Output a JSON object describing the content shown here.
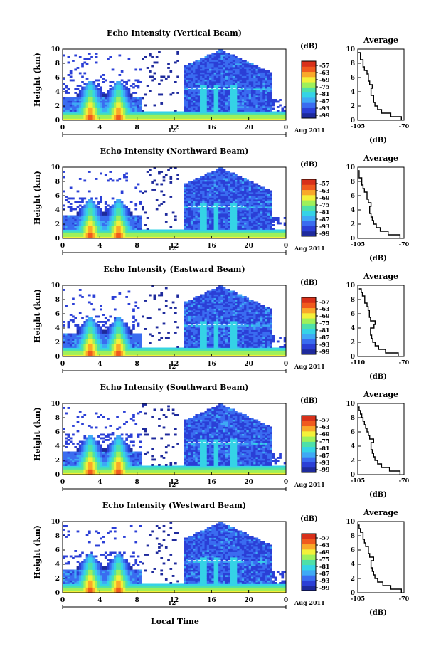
{
  "chart_data": [
    {
      "type": "heatmap",
      "title": "Echo Intensity (Vertical Beam)",
      "ylabel": "Height (km)",
      "xlabel": "",
      "x_ticks": [
        "0",
        "4",
        "8",
        "12",
        "16",
        "20",
        "0"
      ],
      "y_ticks": [
        "0",
        "2",
        "4",
        "6",
        "8",
        "10"
      ],
      "ylim": [
        0,
        10
      ],
      "xlim": [
        0,
        24
      ],
      "colorbar": {
        "unit": "(dB)",
        "ticks": [
          "-57",
          "-63",
          "-69",
          "-75",
          "-81",
          "-87",
          "-93",
          "-99"
        ]
      },
      "date_label": "Aug 2011",
      "mid_label": "12",
      "average": {
        "title": "Average",
        "xlabel": "(dB)",
        "x_ticks": [
          "-105",
          "-70"
        ],
        "xlim": [
          -105,
          -70
        ],
        "y_ticks": [
          "0",
          "2",
          "4",
          "6",
          "8",
          "10"
        ],
        "height": [
          0,
          0.5,
          1,
          1.5,
          2,
          2.5,
          3,
          3.5,
          4,
          4.5,
          5,
          5.5,
          6,
          6.5,
          7,
          7.5,
          8,
          8.5,
          9,
          9.5
        ],
        "db": [
          -72,
          -80,
          -87,
          -90,
          -92,
          -93,
          -93,
          -95,
          -95,
          -94,
          -96,
          -97,
          -97,
          -98,
          -100,
          -101,
          -101,
          -103,
          -103,
          -105
        ]
      }
    },
    {
      "type": "heatmap",
      "title": "Echo Intensity (Northward Beam)",
      "ylabel": "Height (km)",
      "xlabel": "",
      "x_ticks": [
        "0",
        "4",
        "8",
        "12",
        "16",
        "20",
        "0"
      ],
      "y_ticks": [
        "0",
        "2",
        "4",
        "6",
        "8",
        "10"
      ],
      "ylim": [
        0,
        10
      ],
      "xlim": [
        0,
        24
      ],
      "colorbar": {
        "unit": "(dB)",
        "ticks": [
          "-57",
          "-63",
          "-69",
          "-75",
          "-81",
          "-87",
          "-93",
          "-99"
        ]
      },
      "date_label": "Aug 2011",
      "mid_label": "12",
      "average": {
        "title": "Average",
        "xlabel": "(dB)",
        "x_ticks": [
          "-105",
          "-70"
        ],
        "xlim": [
          -105,
          -70
        ],
        "y_ticks": [
          "0",
          "2",
          "4",
          "6",
          "8",
          "10"
        ],
        "height": [
          0,
          0.5,
          1,
          1.5,
          2,
          2.5,
          3,
          3.5,
          4,
          4.5,
          5,
          5.5,
          6,
          6.5,
          7,
          7.5,
          8,
          8.5,
          9,
          9.5
        ],
        "db": [
          -73,
          -82,
          -88,
          -91,
          -93,
          -94,
          -95,
          -96,
          -96,
          -95,
          -97,
          -98,
          -98,
          -100,
          -101,
          -102,
          -102,
          -104,
          -104,
          -105
        ]
      }
    },
    {
      "type": "heatmap",
      "title": "Echo Intensity (Eastward Beam)",
      "ylabel": "Height (km)",
      "xlabel": "",
      "x_ticks": [
        "0",
        "4",
        "8",
        "12",
        "16",
        "20",
        "0"
      ],
      "y_ticks": [
        "0",
        "2",
        "4",
        "6",
        "8",
        "10"
      ],
      "ylim": [
        0,
        10
      ],
      "xlim": [
        0,
        24
      ],
      "colorbar": {
        "unit": "(dB)",
        "ticks": [
          "-57",
          "-63",
          "-69",
          "-75",
          "-81",
          "-87",
          "-93",
          "-99"
        ]
      },
      "date_label": "Aug 2011",
      "mid_label": "12",
      "average": {
        "title": "Average",
        "xlabel": "(dB)",
        "x_ticks": [
          "-110",
          "-70"
        ],
        "xlim": [
          -110,
          -70
        ],
        "y_ticks": [
          "0",
          "2",
          "4",
          "6",
          "8",
          "10"
        ],
        "height": [
          0,
          0.5,
          1,
          1.5,
          2,
          2.5,
          3,
          3.5,
          4,
          4.5,
          5,
          5.5,
          6,
          6.5,
          7,
          7.5,
          8,
          8.5,
          9,
          9.5
        ],
        "db": [
          -75,
          -86,
          -92,
          -95,
          -97,
          -98,
          -99,
          -99,
          -96,
          -95,
          -99,
          -100,
          -100,
          -101,
          -102,
          -104,
          -104,
          -106,
          -107,
          -109
        ]
      }
    },
    {
      "type": "heatmap",
      "title": "Echo Intensity (Southward Beam)",
      "ylabel": "Height (km)",
      "xlabel": "",
      "x_ticks": [
        "0",
        "4",
        "8",
        "12",
        "16",
        "20",
        "0"
      ],
      "y_ticks": [
        "0",
        "2",
        "4",
        "6",
        "8",
        "10"
      ],
      "ylim": [
        0,
        10
      ],
      "xlim": [
        0,
        24
      ],
      "colorbar": {
        "unit": "(dB)",
        "ticks": [
          "-57",
          "-63",
          "-69",
          "-75",
          "-81",
          "-87",
          "-93",
          "-99"
        ]
      },
      "date_label": "Aug 2011",
      "mid_label": "12",
      "average": {
        "title": "Average",
        "xlabel": "(dB)",
        "x_ticks": [
          "-105",
          "-70"
        ],
        "xlim": [
          -105,
          -70
        ],
        "y_ticks": [
          "0",
          "2",
          "4",
          "6",
          "8",
          "10"
        ],
        "height": [
          0,
          0.5,
          1,
          1.5,
          2,
          2.5,
          3,
          3.5,
          4,
          4.5,
          5,
          5.5,
          6,
          6.5,
          7,
          7.5,
          8,
          8.5,
          9,
          9.5
        ],
        "db": [
          -73,
          -81,
          -87,
          -90,
          -92,
          -93,
          -94,
          -95,
          -95,
          -93,
          -96,
          -97,
          -98,
          -99,
          -100,
          -101,
          -102,
          -103,
          -104,
          -105
        ]
      }
    },
    {
      "type": "heatmap",
      "title": "Echo Intensity (Westward Beam)",
      "ylabel": "Height (km)",
      "xlabel": "Local Time",
      "x_ticks": [
        "0",
        "4",
        "8",
        "12",
        "16",
        "20",
        "0"
      ],
      "y_ticks": [
        "0",
        "2",
        "4",
        "6",
        "8",
        "10"
      ],
      "ylim": [
        0,
        10
      ],
      "xlim": [
        0,
        24
      ],
      "colorbar": {
        "unit": "(dB)",
        "ticks": [
          "-57",
          "-63",
          "-69",
          "-75",
          "-81",
          "-87",
          "-93",
          "-99"
        ]
      },
      "date_label": "Aug 2011",
      "mid_label": "12",
      "average": {
        "title": "Average",
        "xlabel": "(dB)",
        "x_ticks": [
          "-105",
          "-70"
        ],
        "xlim": [
          -105,
          -70
        ],
        "y_ticks": [
          "0",
          "2",
          "4",
          "6",
          "8",
          "10"
        ],
        "height": [
          0,
          0.5,
          1,
          1.5,
          2,
          2.5,
          3,
          3.5,
          4,
          4.5,
          5,
          5.5,
          6,
          6.5,
          7,
          7.5,
          8,
          8.5,
          9,
          9.5
        ],
        "db": [
          -72,
          -80,
          -86,
          -90,
          -92,
          -93,
          -94,
          -95,
          -95,
          -93,
          -96,
          -97,
          -97,
          -99,
          -100,
          -101,
          -101,
          -103,
          -104,
          -105
        ]
      }
    }
  ],
  "footer": {
    "xlabel": "Local Time"
  },
  "colors": {
    "colormap": [
      "#1e2a9c",
      "#2b3fd6",
      "#3a6cf0",
      "#3fa9f5",
      "#35d3e6",
      "#4ee0a8",
      "#9ef05a",
      "#f3f03a",
      "#f9a82a",
      "#f05a1e",
      "#d8301a"
    ]
  }
}
